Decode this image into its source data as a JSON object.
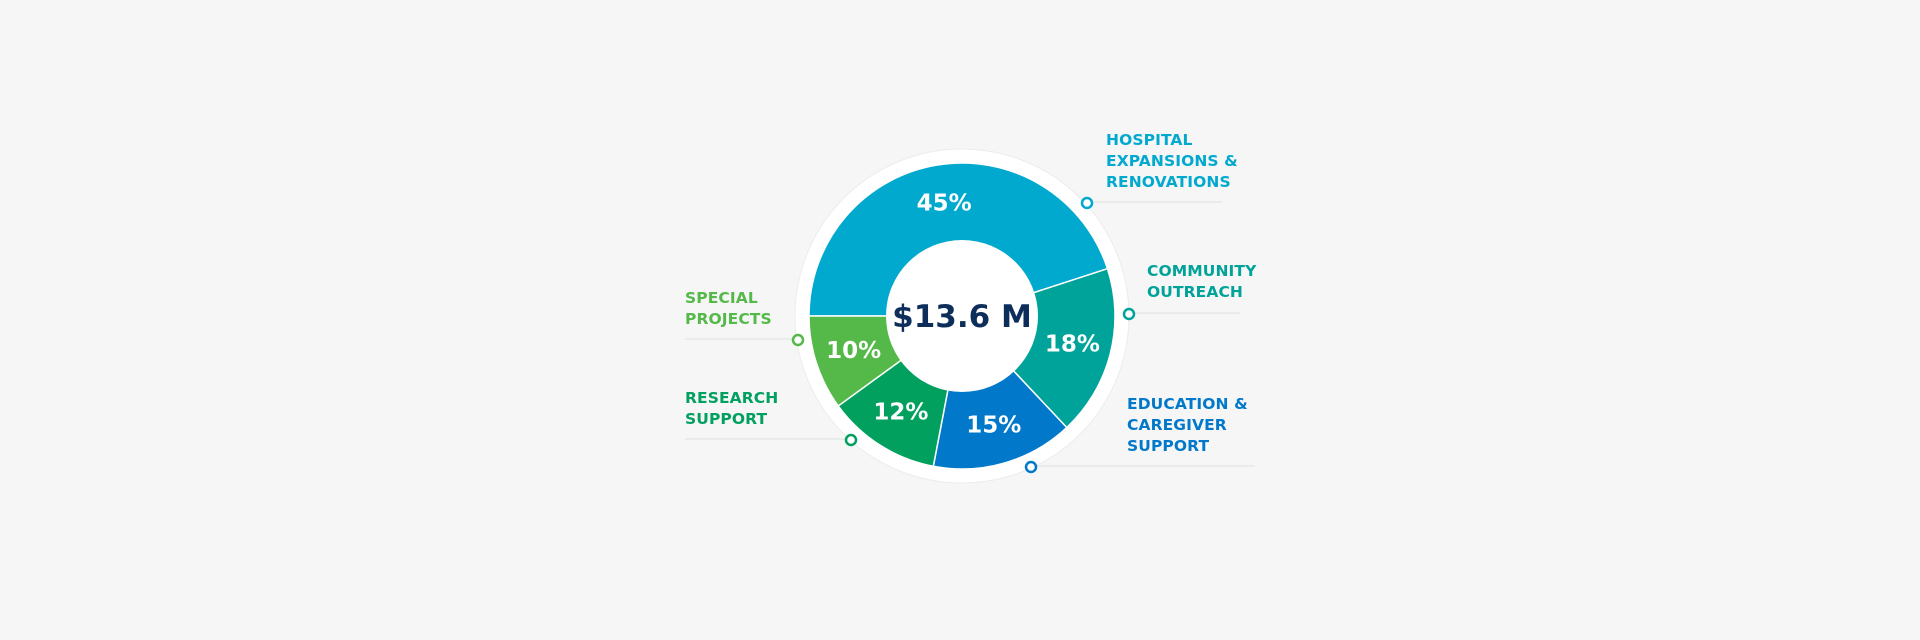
{
  "chart_data": {
    "type": "pie",
    "variant": "donut",
    "center_label": "$13.6 M",
    "start": "9 o'clock, clockwise",
    "slices": [
      {
        "key": "hospital",
        "name": "HOSPITAL\nEXPANSIONS &\nRENOVATIONS",
        "value": 45,
        "label": "45%",
        "color": "#02a9cf"
      },
      {
        "key": "community",
        "name": "COMMUNITY\nOUTREACH",
        "value": 18,
        "label": "18%",
        "color": "#00a39a"
      },
      {
        "key": "education",
        "name": "EDUCATION &\nCAREGIVER\nSUPPORT",
        "value": 15,
        "label": "15%",
        "color": "#0178c9"
      },
      {
        "key": "research",
        "name": "RESEARCH\nSUPPORT",
        "value": 12,
        "label": "12%",
        "color": "#01a05f"
      },
      {
        "key": "special",
        "name": "SPECIAL\nPROJECTS",
        "value": 10,
        "label": "10%",
        "color": "#54b948"
      }
    ]
  },
  "colors": {
    "background": "#f6f6f6",
    "center_text": "#0d2d5a",
    "leader_line": "#e0e0e0"
  }
}
